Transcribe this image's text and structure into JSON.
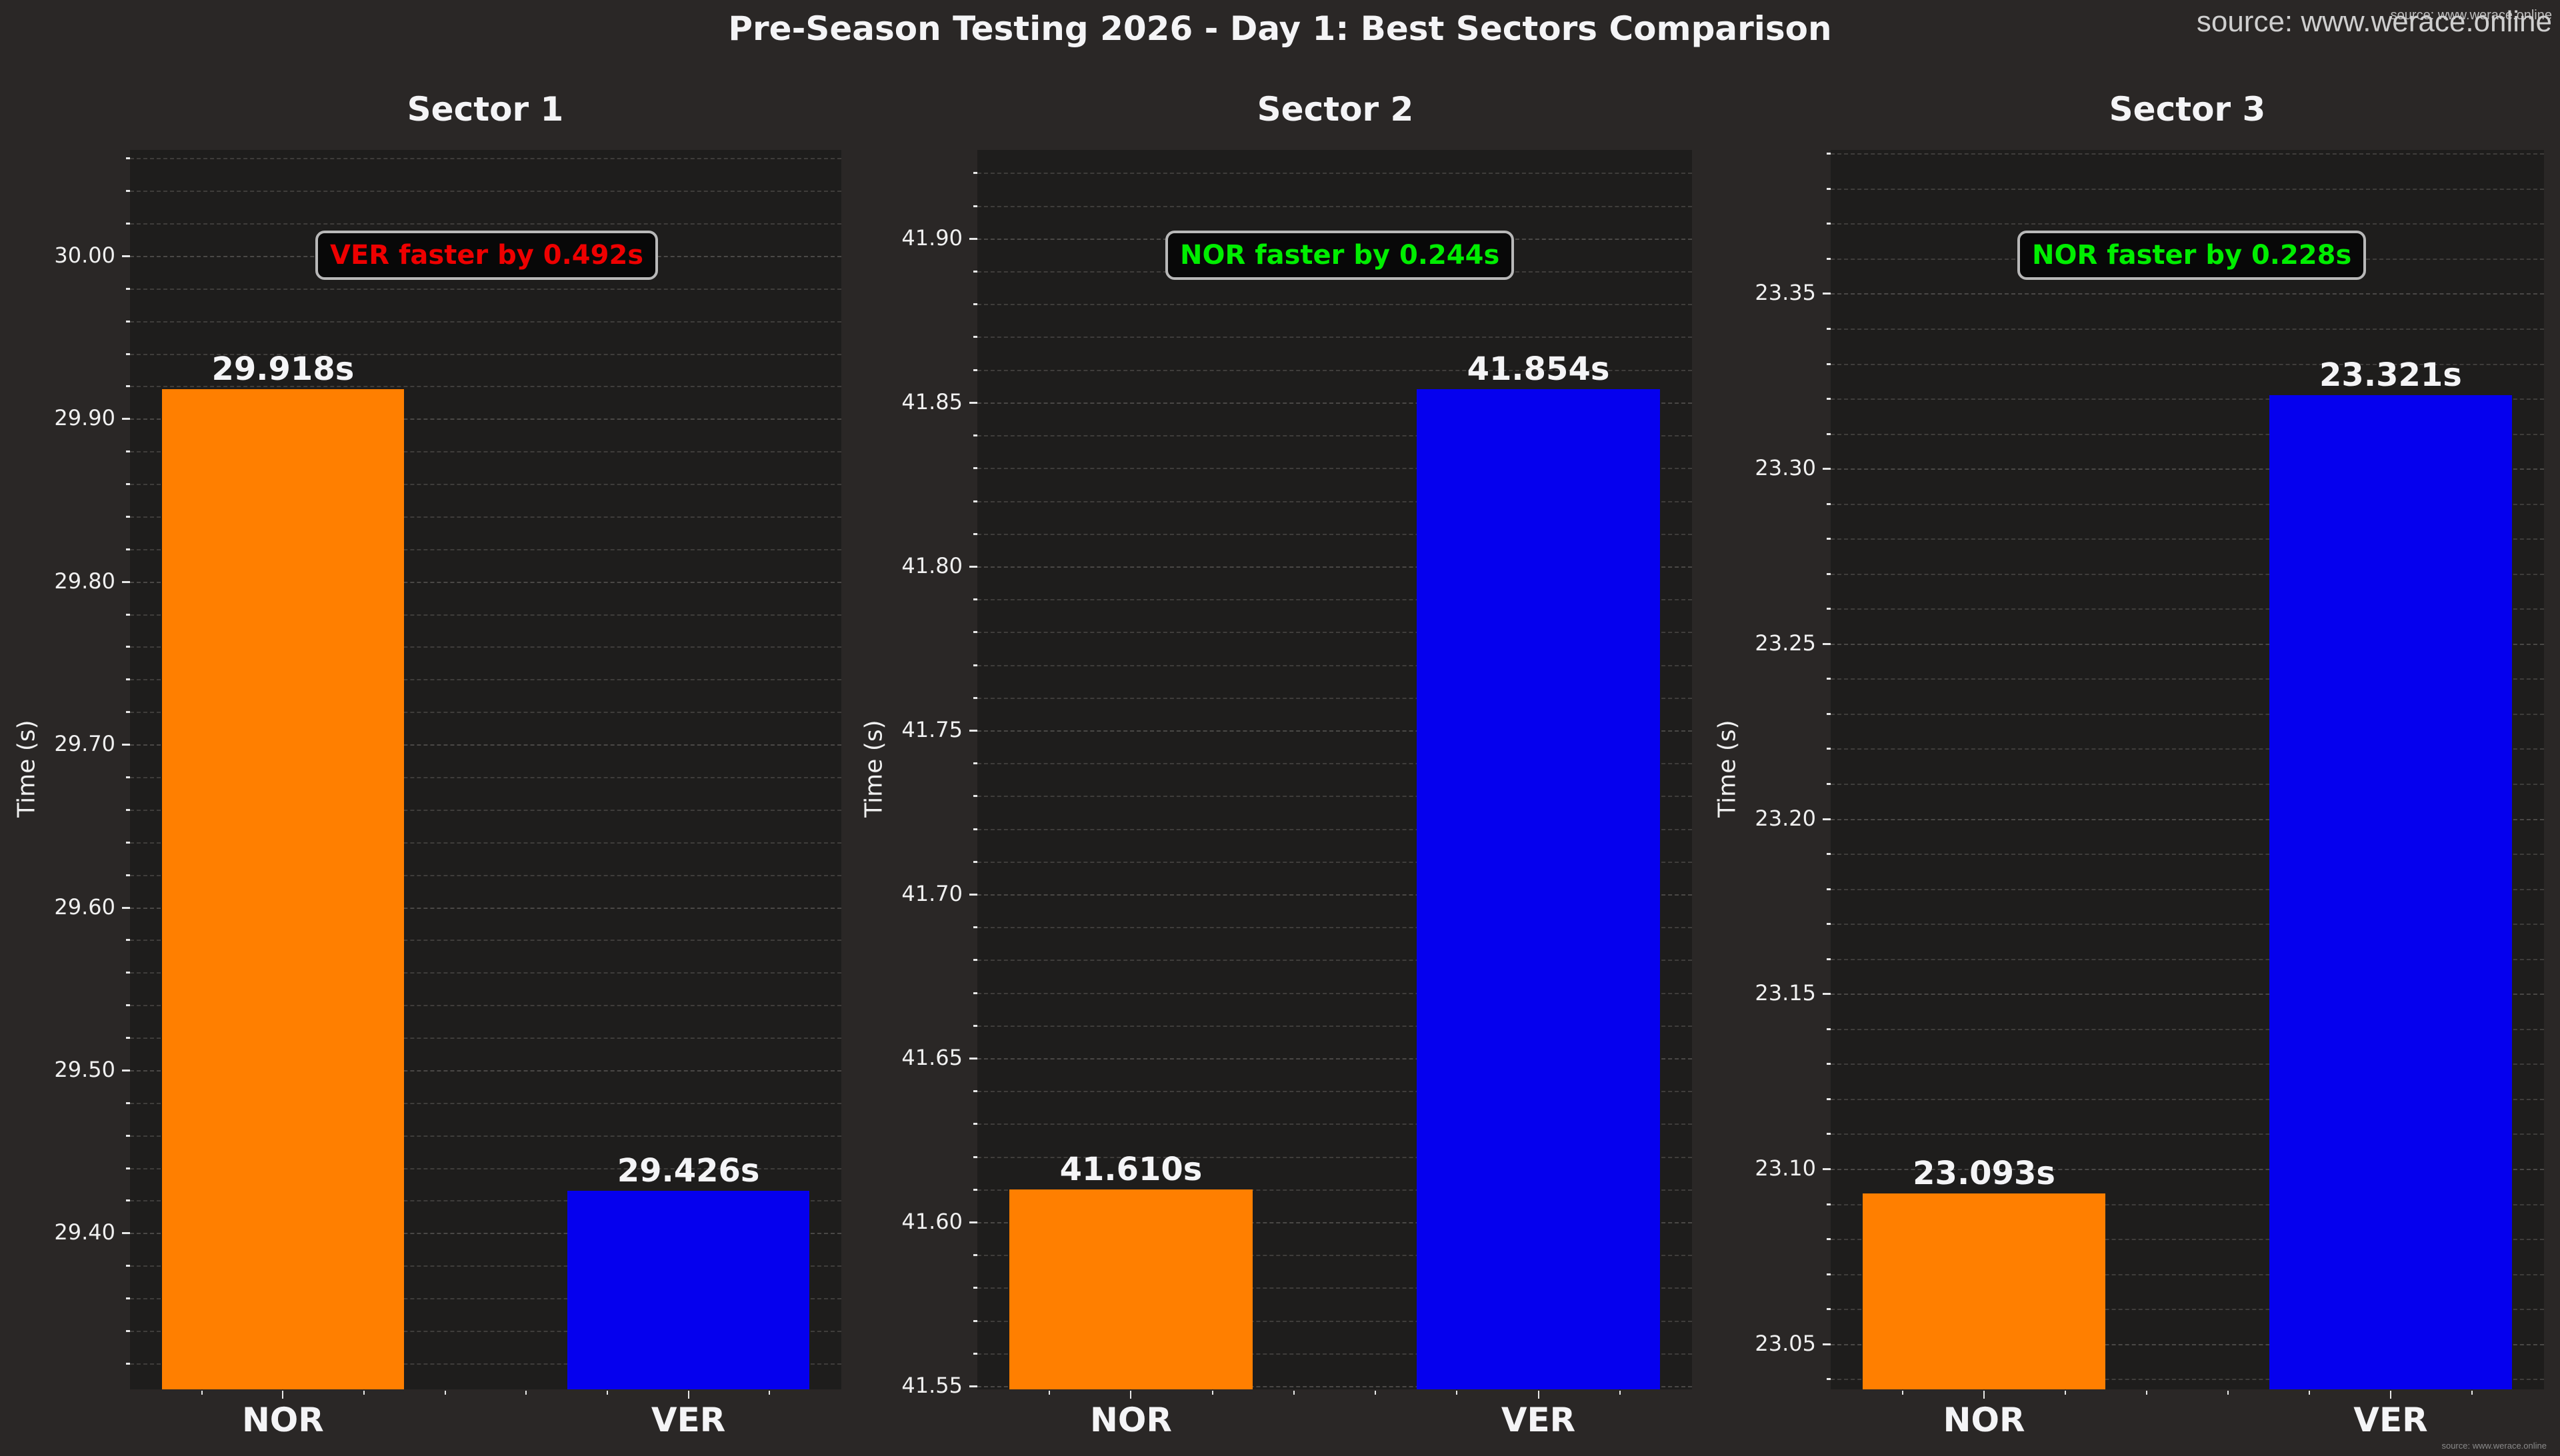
{
  "title": "Pre-Season Testing 2026 - Day 1: Best Sectors Comparison",
  "watermark": {
    "large": "source: www.werace.online",
    "small": "source: www.werace.online",
    "footer": "source: www.werace.online"
  },
  "colors": {
    "background": "#2a2726",
    "plot_background": "#1e1d1c",
    "NOR": "#ff7f00",
    "VER": "#0500ee",
    "faster_nor": "#00ee00",
    "faster_ver": "#ee0000"
  },
  "panels": [
    {
      "title": "Sector 1",
      "ylabel": "Time (s)",
      "yticks": [
        "30.00",
        "29.90",
        "29.80",
        "29.70",
        "29.60",
        "29.50",
        "29.40"
      ],
      "drivers": [
        "NOR",
        "VER"
      ],
      "values": [
        "29.918s",
        "29.426s"
      ],
      "delta": "VER faster by 0.492s"
    },
    {
      "title": "Sector 2",
      "ylabel": "Time (s)",
      "yticks": [
        "41.90",
        "41.85",
        "41.80",
        "41.75",
        "41.70",
        "41.65",
        "41.60",
        "41.55"
      ],
      "drivers": [
        "NOR",
        "VER"
      ],
      "values": [
        "41.610s",
        "41.854s"
      ],
      "delta": "NOR faster by 0.244s"
    },
    {
      "title": "Sector 3",
      "ylabel": "Time (s)",
      "yticks": [
        "23.35",
        "23.30",
        "23.25",
        "23.20",
        "23.15",
        "23.10",
        "23.05"
      ],
      "drivers": [
        "NOR",
        "VER"
      ],
      "values": [
        "23.093s",
        "23.321s"
      ],
      "delta": "NOR faster by 0.228s"
    }
  ],
  "chart_data": [
    {
      "type": "bar",
      "title": "Sector 1",
      "suptitle": "Pre-Season Testing 2026 - Day 1: Best Sectors Comparison",
      "categories": [
        "NOR",
        "VER"
      ],
      "values": [
        29.918,
        29.426
      ],
      "colors": [
        "#ff7f00",
        "#0500ee"
      ],
      "xlabel": "",
      "ylabel": "Time (s)",
      "ylim": [
        29.304,
        30.065
      ],
      "yticks": [
        29.4,
        29.5,
        29.6,
        29.7,
        29.8,
        29.9,
        30.0
      ],
      "annotation": "VER faster by 0.492s",
      "grid": true
    },
    {
      "type": "bar",
      "title": "Sector 2",
      "categories": [
        "NOR",
        "VER"
      ],
      "values": [
        41.61,
        41.854
      ],
      "colors": [
        "#ff7f00",
        "#0500ee"
      ],
      "xlabel": "",
      "ylabel": "Time (s)",
      "ylim": [
        41.549,
        41.927
      ],
      "yticks": [
        41.55,
        41.6,
        41.65,
        41.7,
        41.75,
        41.8,
        41.85,
        41.9
      ],
      "annotation": "NOR faster by 0.244s",
      "grid": true
    },
    {
      "type": "bar",
      "title": "Sector 3",
      "categories": [
        "NOR",
        "VER"
      ],
      "values": [
        23.093,
        23.321
      ],
      "colors": [
        "#ff7f00",
        "#0500ee"
      ],
      "xlabel": "",
      "ylabel": "Time (s)",
      "ylim": [
        23.037,
        23.391
      ],
      "yticks": [
        23.05,
        23.1,
        23.15,
        23.2,
        23.25,
        23.3,
        23.35
      ],
      "annotation": "NOR faster by 0.228s",
      "grid": true
    }
  ]
}
